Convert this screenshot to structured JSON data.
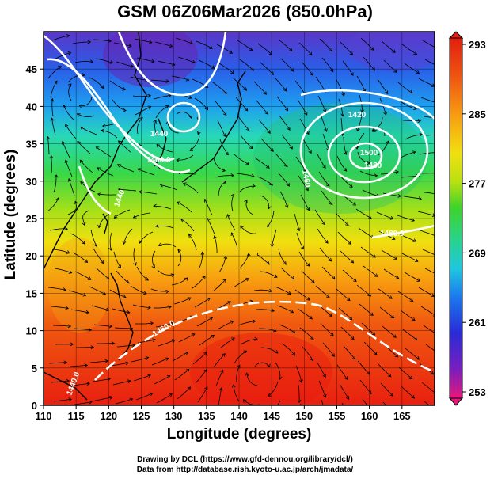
{
  "title": "GSM 06Z06Mar2026 (850.0hPa)",
  "axes": {
    "xlabel": "Longitude (degrees)",
    "ylabel": "Latitude  (degrees)",
    "xticks": [
      "110",
      "115",
      "120",
      "125",
      "130",
      "135",
      "140",
      "145",
      "150",
      "155",
      "160",
      "165"
    ],
    "yticks": [
      "0",
      "5",
      "10",
      "15",
      "20",
      "25",
      "30",
      "35",
      "40",
      "45"
    ],
    "xrange": [
      110,
      170
    ],
    "yrange": [
      0,
      50
    ]
  },
  "colorbar": {
    "labels": [
      "293",
      "285",
      "277",
      "269",
      "261",
      "253"
    ],
    "range": [
      253,
      293
    ],
    "colors": [
      "#e8187a",
      "#7a1ec0",
      "#2a2ad8",
      "#1a78f0",
      "#1ec8e0",
      "#28d48c",
      "#3ed428",
      "#b8e010",
      "#f0e010",
      "#f8a010",
      "#f05010",
      "#e02010"
    ]
  },
  "contours": {
    "labels": [
      "1440",
      "1460.0",
      "1440",
      "1420",
      "1460",
      "1480",
      "1500",
      "1480.0",
      "1460.0",
      "1440.0"
    ]
  },
  "credits": {
    "drawing": "Drawing by DCL (https://www.gfd-dennou.org/library/dcl/)",
    "data": "Data from http://database.rish.kyoto-u.ac.jp/arch/jmadata/"
  }
}
